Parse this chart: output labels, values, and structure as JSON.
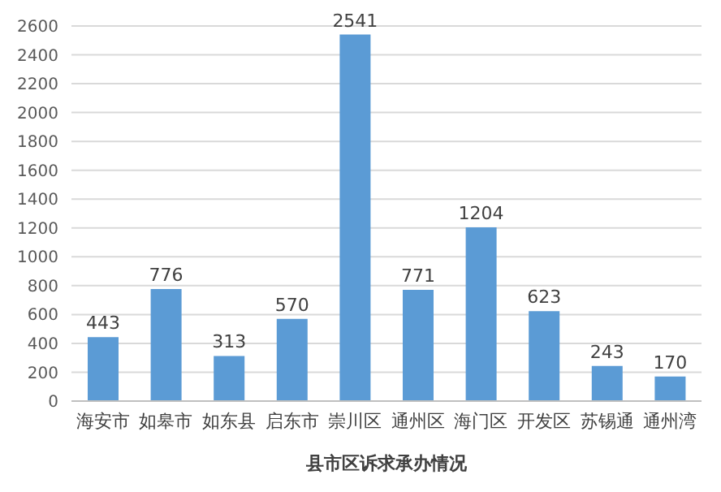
{
  "chart_data": {
    "type": "bar",
    "xlabel": "县市区诉求承办情况",
    "categories": [
      "海安市",
      "如皋市",
      "如东县",
      "启东市",
      "崇川区",
      "通州区",
      "海门区",
      "开发区",
      "苏锡通",
      "通州湾"
    ],
    "values": [
      443,
      776,
      313,
      570,
      2541,
      771,
      1204,
      623,
      243,
      170
    ],
    "color": "#5b9bd5",
    "ylim": [
      0,
      2600
    ],
    "yticks": [
      0,
      200,
      400,
      600,
      800,
      1000,
      1200,
      1400,
      1600,
      1800,
      2000,
      2200,
      2400,
      2600
    ],
    "grid": "y",
    "data_labels": true
  }
}
